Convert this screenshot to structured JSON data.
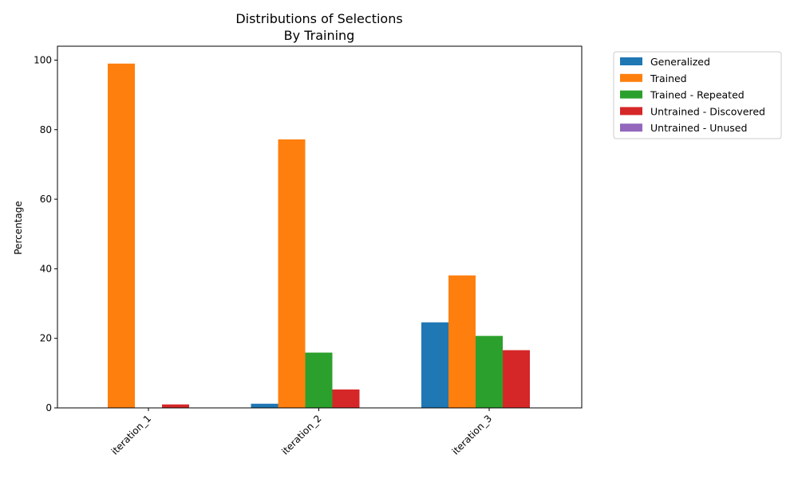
{
  "chart_data": {
    "type": "bar",
    "title": "Distributions of Selections",
    "subtitle": "By Training",
    "xlabel": "",
    "ylabel": "Percentage",
    "ylim": [
      0,
      104
    ],
    "yticks": [
      "0",
      "20",
      "40",
      "60",
      "80",
      "100"
    ],
    "categories": [
      "iteration_1",
      "iteration_2",
      "iteration_3"
    ],
    "series": [
      {
        "name": "Generalized",
        "color": "#1f77b4",
        "values": [
          0,
          1.2,
          24.6
        ]
      },
      {
        "name": "Trained",
        "color": "#ff7f0e",
        "values": [
          99.0,
          77.2,
          38.1
        ]
      },
      {
        "name": "Trained - Repeated",
        "color": "#2ca02c",
        "values": [
          0,
          15.9,
          20.7
        ]
      },
      {
        "name": "Untrained - Discovered",
        "color": "#d62728",
        "values": [
          1.0,
          5.3,
          16.6
        ]
      },
      {
        "name": "Untrained - Unused",
        "color": "#9467bd",
        "values": [
          0,
          0,
          0
        ]
      }
    ],
    "grid": false,
    "legend": "outside-top-right"
  }
}
